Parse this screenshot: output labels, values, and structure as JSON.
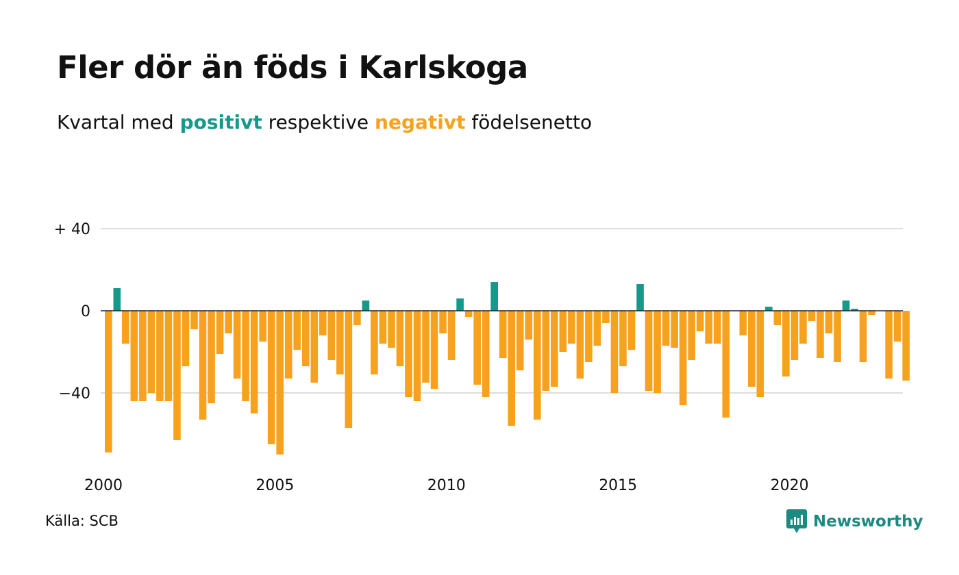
{
  "title": "Fler dör än föds i Karlskoga",
  "subtitle": {
    "prefix": "Kvartal med ",
    "positive": "positivt",
    "middle": " respektive ",
    "negative": "negativt",
    "suffix": " födelsenetto"
  },
  "source": "Källa: SCB",
  "logo": {
    "text": "Newsworthy",
    "icon": "newsworthy-logo-icon"
  },
  "colors": {
    "positive": "#16998b",
    "negative": "#f7a21e",
    "grid": "#dddddd",
    "zero": "#222222"
  },
  "chart_data": {
    "type": "bar",
    "title": "Fler dör än föds i Karlskoga",
    "subtitle": "Kvartal med positivt respektive negativt födelsenetto",
    "xlabel": "",
    "ylabel": "",
    "ylim": [
      -70,
      42
    ],
    "yticks": [
      40,
      0,
      -40
    ],
    "ytick_labels": [
      "+ 40",
      "0",
      "−40"
    ],
    "xticks": [
      2000,
      2005,
      2010,
      2015,
      2020
    ],
    "x_start": "2000 Q1",
    "x_end": "2023 Q2",
    "grid": true,
    "legend": "none",
    "values": [
      -69,
      11,
      -16,
      -44,
      -44,
      -40,
      -44,
      -44,
      -63,
      -27,
      -9,
      -53,
      -45,
      -21,
      -11,
      -33,
      -44,
      -50,
      -15,
      -65,
      -70,
      -33,
      -19,
      -27,
      -35,
      -12,
      -24,
      -31,
      -57,
      -7,
      5,
      -31,
      -16,
      -18,
      -27,
      -42,
      -44,
      -35,
      -38,
      -11,
      -24,
      6,
      -3,
      -36,
      -42,
      14,
      -23,
      -56,
      -29,
      -14,
      -53,
      -39,
      -37,
      -20,
      -16,
      -33,
      -25,
      -17,
      -6,
      -40,
      -27,
      -19,
      13,
      -39,
      -40,
      -17,
      -18,
      -46,
      -24,
      -10,
      -16,
      -16,
      -52,
      0,
      -12,
      -37,
      -42,
      2,
      -7,
      -32,
      -24,
      -16,
      -5,
      -23,
      -11,
      -25,
      5,
      1,
      -25,
      -2,
      0,
      -33,
      -15,
      -34
    ]
  }
}
